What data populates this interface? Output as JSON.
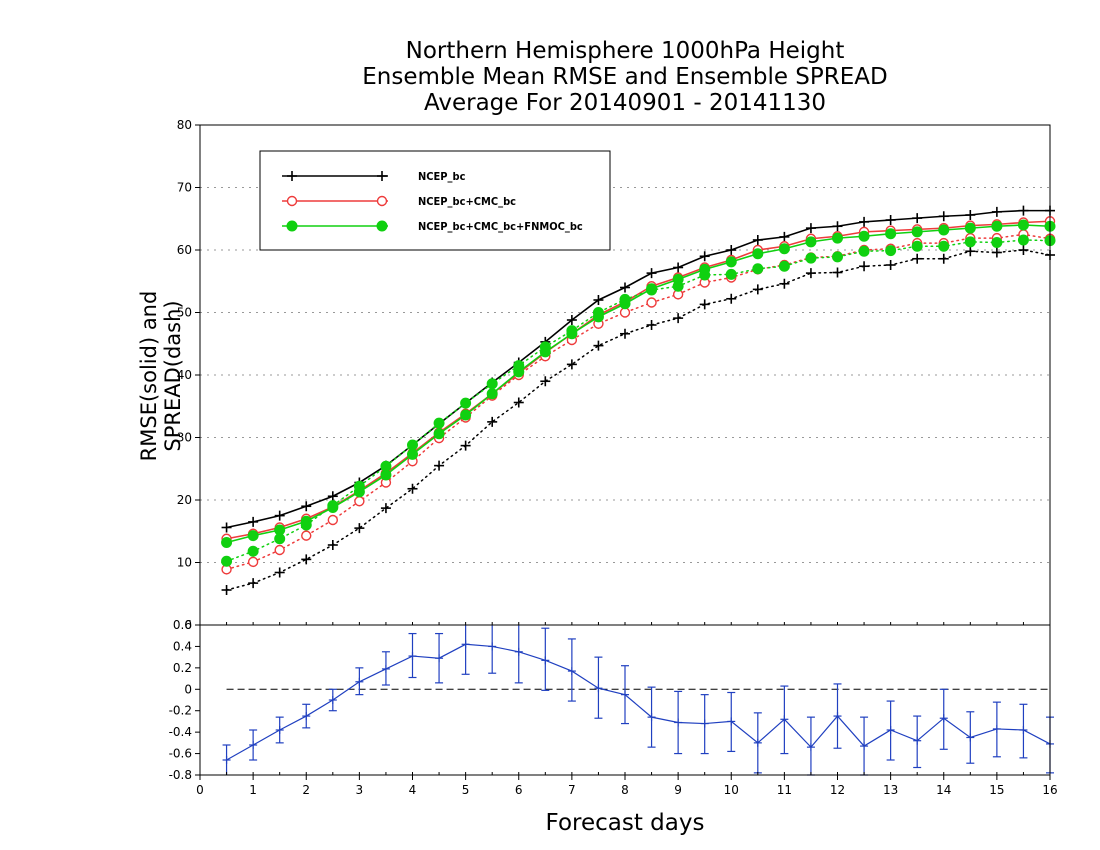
{
  "title": {
    "line1": "Northern Hemisphere 1000hPa Height",
    "line2": "Ensemble Mean RMSE and Ensemble SPREAD",
    "line3": "Average For 20140901 - 20141130"
  },
  "chart_data": [
    {
      "type": "line",
      "ylabel": "RMSE(solid) and SPREAD(dash)",
      "ylim": [
        0,
        80
      ],
      "yticks": [
        0,
        10,
        20,
        30,
        40,
        50,
        60,
        70,
        80
      ],
      "xlim": [
        0,
        16
      ],
      "grid": true,
      "legend_position": "top-left",
      "x": [
        0.5,
        1,
        1.5,
        2,
        2.5,
        3,
        3.5,
        4,
        4.5,
        5,
        5.5,
        6,
        6.5,
        7,
        7.5,
        8,
        8.5,
        9,
        9.5,
        10,
        10.5,
        11,
        11.5,
        12,
        12.5,
        13,
        13.5,
        14,
        14.5,
        15,
        15.5,
        16
      ],
      "series": [
        {
          "name": "NCEP_bc",
          "color": "#000000",
          "marker": "plus",
          "rmse": [
            15.6,
            16.5,
            17.5,
            19.0,
            20.6,
            22.8,
            25.5,
            28.8,
            32.2,
            35.5,
            38.8,
            42.0,
            45.3,
            48.8,
            52.0,
            54.0,
            56.3,
            57.2,
            59.0,
            60.0,
            61.6,
            62.1,
            63.5,
            63.8,
            64.5,
            64.8,
            65.1,
            65.4,
            65.6,
            66.1,
            66.3,
            66.3
          ],
          "spread": [
            5.6,
            6.7,
            8.4,
            10.5,
            12.8,
            15.5,
            18.7,
            21.8,
            25.5,
            28.7,
            32.5,
            35.6,
            39.0,
            41.7,
            44.7,
            46.6,
            48.0,
            49.1,
            51.3,
            52.2,
            53.7,
            54.6,
            56.3,
            56.4,
            57.4,
            57.6,
            58.6,
            58.6,
            59.8,
            59.6,
            60.0,
            59.2
          ]
        },
        {
          "name": "NCEP_bc+CMC_bc",
          "color": "#ee3b3b",
          "marker": "open-circle",
          "rmse": [
            13.8,
            14.6,
            15.6,
            17.0,
            18.9,
            21.5,
            24.3,
            27.5,
            30.8,
            33.8,
            37.0,
            40.3,
            43.6,
            46.6,
            49.6,
            51.7,
            54.2,
            55.6,
            57.2,
            58.4,
            60.0,
            60.6,
            61.8,
            62.2,
            62.9,
            63.1,
            63.3,
            63.5,
            63.9,
            64.1,
            64.4,
            64.6
          ],
          "spread": [
            8.9,
            10.1,
            12.0,
            14.3,
            16.8,
            19.8,
            22.8,
            26.2,
            29.9,
            33.2,
            36.7,
            40.0,
            43.0,
            45.6,
            48.2,
            50.0,
            51.6,
            52.9,
            54.8,
            55.6,
            56.9,
            57.6,
            58.8,
            59.0,
            60.0,
            60.2,
            61.1,
            61.1,
            61.9,
            61.9,
            62.5,
            61.8
          ]
        },
        {
          "name": "NCEP_bc+CMC_bc+FNMOC_bc",
          "color": "#10d010",
          "marker": "filled-circle",
          "rmse": [
            13.2,
            14.3,
            15.2,
            16.6,
            18.8,
            21.3,
            24.0,
            27.3,
            30.6,
            33.6,
            37.0,
            40.5,
            43.7,
            46.6,
            49.3,
            51.4,
            53.8,
            55.3,
            56.9,
            58.1,
            59.4,
            60.2,
            61.3,
            61.9,
            62.2,
            62.6,
            62.9,
            63.2,
            63.5,
            63.8,
            64.0,
            63.8
          ],
          "spread": [
            10.2,
            11.8,
            13.8,
            16.0,
            19.1,
            22.2,
            25.4,
            28.8,
            32.3,
            35.5,
            38.6,
            41.5,
            44.5,
            47.1,
            50.0,
            52.1,
            53.6,
            54.2,
            56.0,
            56.1,
            57.0,
            57.4,
            58.7,
            58.9,
            59.8,
            59.9,
            60.6,
            60.6,
            61.3,
            61.2,
            61.6,
            61.5
          ]
        }
      ]
    },
    {
      "type": "line",
      "ylim": [
        -0.8,
        0.6
      ],
      "yticks": [
        -0.8,
        -0.6,
        -0.4,
        -0.2,
        0,
        0.2,
        0.4,
        0.6
      ],
      "ytick_labels": [
        "-0.8",
        "-0.6",
        "-0.4",
        "-0.2",
        "0",
        "0.2",
        "0.4",
        "0.6"
      ],
      "xlim": [
        0,
        16
      ],
      "xticks": [
        0,
        1,
        2,
        3,
        4,
        5,
        6,
        7,
        8,
        9,
        10,
        11,
        12,
        13,
        14,
        15,
        16
      ],
      "xlabel": "Forecast days",
      "zero_line": "dashed",
      "error_bars": true,
      "series": [
        {
          "color": "#2040c0",
          "x": [
            0.5,
            1,
            1.5,
            2,
            2.5,
            3,
            3.5,
            4,
            4.5,
            5,
            5.5,
            6,
            6.5,
            7,
            7.5,
            8,
            8.5,
            9,
            9.5,
            10,
            10.5,
            11,
            11.5,
            12,
            12.5,
            13,
            13.5,
            14,
            14.5,
            15,
            15.5,
            16
          ],
          "values": [
            -0.66,
            -0.52,
            -0.38,
            -0.25,
            -0.1,
            0.07,
            0.19,
            0.31,
            0.29,
            0.42,
            0.4,
            0.35,
            0.27,
            0.17,
            0.01,
            -0.05,
            -0.26,
            -0.31,
            -0.32,
            -0.3,
            -0.5,
            -0.28,
            -0.54,
            -0.25,
            -0.53,
            -0.38,
            -0.48,
            -0.27,
            -0.45,
            -0.37,
            -0.38,
            -0.51
          ],
          "lower": [
            -0.81,
            -0.66,
            -0.5,
            -0.36,
            -0.2,
            -0.05,
            0.04,
            0.11,
            0.06,
            0.14,
            0.15,
            0.06,
            -0.01,
            -0.11,
            -0.27,
            -0.32,
            -0.54,
            -0.6,
            -0.6,
            -0.58,
            -0.78,
            -0.6,
            -0.8,
            -0.55,
            -0.8,
            -0.66,
            -0.73,
            -0.56,
            -0.69,
            -0.63,
            -0.64,
            -0.78
          ],
          "upper": [
            -0.52,
            -0.38,
            -0.26,
            -0.14,
            0.0,
            0.2,
            0.35,
            0.52,
            0.52,
            0.69,
            0.64,
            0.64,
            0.57,
            0.47,
            0.3,
            0.22,
            0.02,
            -0.02,
            -0.05,
            -0.03,
            -0.22,
            0.03,
            -0.26,
            0.05,
            -0.26,
            -0.11,
            -0.25,
            0.0,
            -0.21,
            -0.12,
            -0.14,
            -0.26
          ]
        }
      ]
    }
  ]
}
